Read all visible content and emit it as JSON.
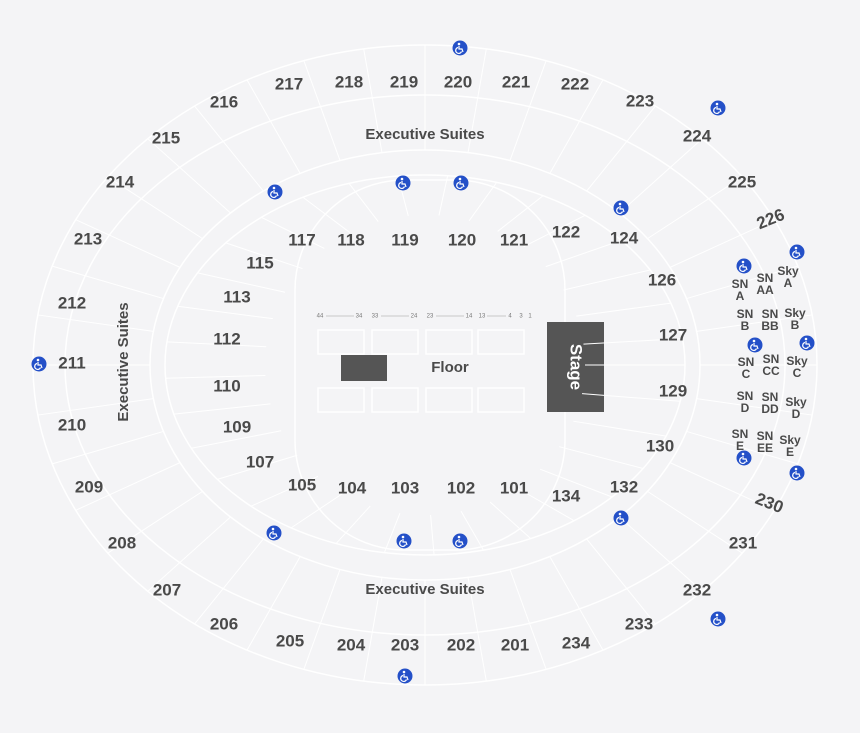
{
  "upper_sections": [
    "216",
    "217",
    "218",
    "219",
    "220",
    "221",
    "222",
    "223",
    "224",
    "225",
    "226",
    "215",
    "214",
    "213",
    "212",
    "211",
    "210",
    "209",
    "208",
    "207",
    "206",
    "205",
    "204",
    "203",
    "202",
    "201",
    "234",
    "233",
    "232",
    "231",
    "230"
  ],
  "lower_sections": [
    "117",
    "118",
    "119",
    "120",
    "121",
    "122",
    "124",
    "115",
    "113",
    "112",
    "110",
    "109",
    "107",
    "105",
    "104",
    "103",
    "102",
    "101",
    "134",
    "132",
    "126",
    "127",
    "129",
    "130"
  ],
  "executive_suites": [
    "Executive Suites",
    "Executive Suites",
    "Executive Suites"
  ],
  "floor_label": "Floor",
  "stage_label": "Stage",
  "floor_row_numbers": [
    "44",
    "34",
    "33",
    "24",
    "23",
    "14",
    "13",
    "4",
    "3",
    "1"
  ],
  "boxes": [
    {
      "lines": [
        "SN",
        "A"
      ]
    },
    {
      "lines": [
        "SN",
        "AA"
      ]
    },
    {
      "lines": [
        "Sky",
        "A"
      ]
    },
    {
      "lines": [
        "SN",
        "B"
      ]
    },
    {
      "lines": [
        "SN",
        "BB"
      ]
    },
    {
      "lines": [
        "Sky",
        "B"
      ]
    },
    {
      "lines": [
        "SN",
        "C"
      ]
    },
    {
      "lines": [
        "SN",
        "CC"
      ]
    },
    {
      "lines": [
        "Sky",
        "C"
      ]
    },
    {
      "lines": [
        "SN",
        "D"
      ]
    },
    {
      "lines": [
        "SN",
        "DD"
      ]
    },
    {
      "lines": [
        "Sky",
        "D"
      ]
    },
    {
      "lines": [
        "SN",
        "E"
      ]
    },
    {
      "lines": [
        "SN",
        "EE"
      ]
    },
    {
      "lines": [
        "Sky",
        "E"
      ]
    }
  ]
}
